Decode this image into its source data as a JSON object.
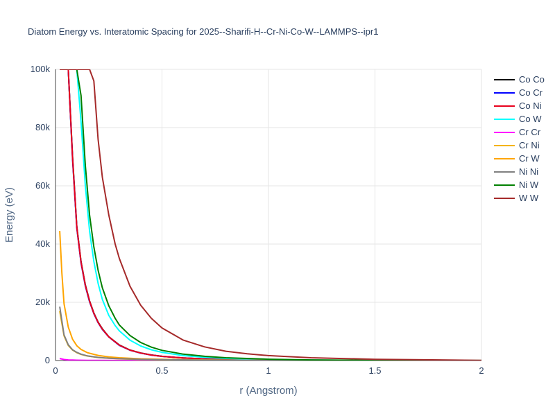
{
  "chart_data": {
    "type": "line",
    "title": "Diatom Energy vs. Interatomic Spacing for 2025--Sharifi-H--Cr-Ni-Co-W--LAMMPS--ipr1",
    "xlabel": "r (Angstrom)",
    "ylabel": "Energy (eV)",
    "xlim": [
      0,
      2
    ],
    "ylim": [
      0,
      100000
    ],
    "x_ticks": [
      0,
      0.5,
      1,
      1.5,
      2
    ],
    "x_tick_labels": [
      "0",
      "0.5",
      "1",
      "1.5",
      "2"
    ],
    "y_ticks": [
      0,
      20000,
      40000,
      60000,
      80000,
      100000
    ],
    "y_tick_labels": [
      "0",
      "20k",
      "40k",
      "60k",
      "80k",
      "100k"
    ],
    "grid": true,
    "legend_position": "top-right",
    "series": [
      {
        "name": "Co Co",
        "color": "#000000",
        "x": [
          0.06,
          0.08,
          0.1,
          0.12,
          0.14,
          0.16,
          0.18,
          0.2,
          0.22,
          0.25,
          0.3,
          0.35,
          0.4,
          0.45,
          0.5,
          0.6,
          0.7,
          0.8,
          1.0,
          1.2,
          1.5,
          2.0
        ],
        "y": [
          100000,
          70000,
          46000,
          34000,
          26000,
          20500,
          16300,
          13200,
          10900,
          8200,
          5300,
          3600,
          2600,
          1900,
          1450,
          880,
          560,
          370,
          170,
          80,
          30,
          5
        ]
      },
      {
        "name": "Co Cr",
        "color": "#0000ff",
        "x": [
          0.06,
          0.08,
          0.1,
          0.12,
          0.14,
          0.16,
          0.18,
          0.2,
          0.22,
          0.25,
          0.3,
          0.35,
          0.4,
          0.45,
          0.5,
          0.6,
          0.7,
          0.8,
          1.0,
          1.2,
          1.5,
          2.0
        ],
        "y": [
          100000,
          69000,
          45500,
          33500,
          25600,
          20200,
          16100,
          13000,
          10700,
          8100,
          5200,
          3550,
          2550,
          1880,
          1430,
          870,
          550,
          365,
          165,
          78,
          30,
          5
        ]
      },
      {
        "name": "Co Ni",
        "color": "#e8001c",
        "x": [
          0.06,
          0.08,
          0.1,
          0.12,
          0.14,
          0.16,
          0.18,
          0.2,
          0.22,
          0.25,
          0.3,
          0.35,
          0.4,
          0.45,
          0.5,
          0.6,
          0.7,
          0.8,
          1.0,
          1.2,
          1.5,
          2.0
        ],
        "y": [
          100000,
          69500,
          45800,
          33800,
          25800,
          20400,
          16200,
          13100,
          10800,
          8150,
          5250,
          3580,
          2580,
          1890,
          1440,
          875,
          555,
          368,
          168,
          79,
          30,
          5
        ]
      },
      {
        "name": "Co W",
        "color": "#00ffff",
        "x": [
          0.1,
          0.12,
          0.14,
          0.16,
          0.18,
          0.2,
          0.22,
          0.25,
          0.28,
          0.3,
          0.35,
          0.4,
          0.45,
          0.5,
          0.6,
          0.7,
          0.8,
          1.0,
          1.2,
          1.5,
          2.0
        ],
        "y": [
          100000,
          82000,
          60000,
          44500,
          34000,
          26500,
          21000,
          15500,
          12000,
          10200,
          7000,
          5000,
          3700,
          2800,
          1700,
          1100,
          720,
          330,
          160,
          60,
          10
        ]
      },
      {
        "name": "Cr Cr",
        "color": "#ff00ff",
        "x": [
          0.02,
          0.04,
          0.06,
          0.08,
          0.1,
          0.15,
          0.2,
          0.3,
          0.4,
          0.5,
          0.7,
          1.0,
          1.5,
          2.0
        ],
        "y": [
          700,
          350,
          220,
          160,
          120,
          80,
          55,
          35,
          25,
          18,
          10,
          5,
          2,
          0
        ]
      },
      {
        "name": "Cr Ni",
        "color": "#f4b400",
        "x": [
          0.02,
          0.04,
          0.06,
          0.08,
          0.1,
          0.12,
          0.15,
          0.2,
          0.25,
          0.3,
          0.4,
          0.5,
          0.7,
          1.0,
          1.5,
          2.0
        ],
        "y": [
          17000,
          8500,
          5200,
          3600,
          2700,
          2100,
          1550,
          1050,
          780,
          600,
          390,
          270,
          140,
          60,
          20,
          3
        ]
      },
      {
        "name": "Cr W",
        "color": "#ffa500",
        "x": [
          0.02,
          0.03,
          0.04,
          0.06,
          0.08,
          0.1,
          0.12,
          0.15,
          0.2,
          0.25,
          0.3,
          0.4,
          0.5,
          0.7,
          1.0,
          1.5,
          2.0
        ],
        "y": [
          44500,
          30000,
          19500,
          11500,
          7300,
          5100,
          3800,
          2700,
          1750,
          1250,
          950,
          600,
          420,
          220,
          100,
          35,
          5
        ]
      },
      {
        "name": "Ni Ni",
        "color": "#808080",
        "x": [
          0.02,
          0.04,
          0.06,
          0.08,
          0.1,
          0.12,
          0.15,
          0.2,
          0.25,
          0.3,
          0.4,
          0.5,
          0.7,
          1.0,
          1.5,
          2.0
        ],
        "y": [
          18500,
          8800,
          5400,
          3700,
          2800,
          2200,
          1600,
          1080,
          800,
          620,
          400,
          280,
          145,
          62,
          20,
          3
        ]
      },
      {
        "name": "Ni W",
        "color": "#008000",
        "x": [
          0.1,
          0.12,
          0.14,
          0.16,
          0.18,
          0.2,
          0.22,
          0.25,
          0.28,
          0.3,
          0.35,
          0.4,
          0.45,
          0.5,
          0.6,
          0.7,
          0.8,
          1.0,
          1.2,
          1.5,
          2.0
        ],
        "y": [
          100000,
          91000,
          67000,
          50000,
          39000,
          31000,
          25000,
          18800,
          14500,
          12200,
          8600,
          6200,
          4600,
          3500,
          2200,
          1450,
          950,
          450,
          210,
          80,
          15
        ]
      },
      {
        "name": "W W",
        "color": "#a52a2a",
        "x": [
          0.02,
          0.16,
          0.18,
          0.2,
          0.22,
          0.25,
          0.28,
          0.3,
          0.35,
          0.4,
          0.45,
          0.5,
          0.6,
          0.7,
          0.8,
          0.9,
          1.0,
          1.2,
          1.5,
          2.0
        ],
        "y": [
          100000,
          100000,
          96000,
          76000,
          63000,
          50000,
          40000,
          35000,
          25500,
          19000,
          14500,
          11200,
          7000,
          4700,
          3200,
          2300,
          1700,
          950,
          420,
          80
        ]
      }
    ]
  }
}
